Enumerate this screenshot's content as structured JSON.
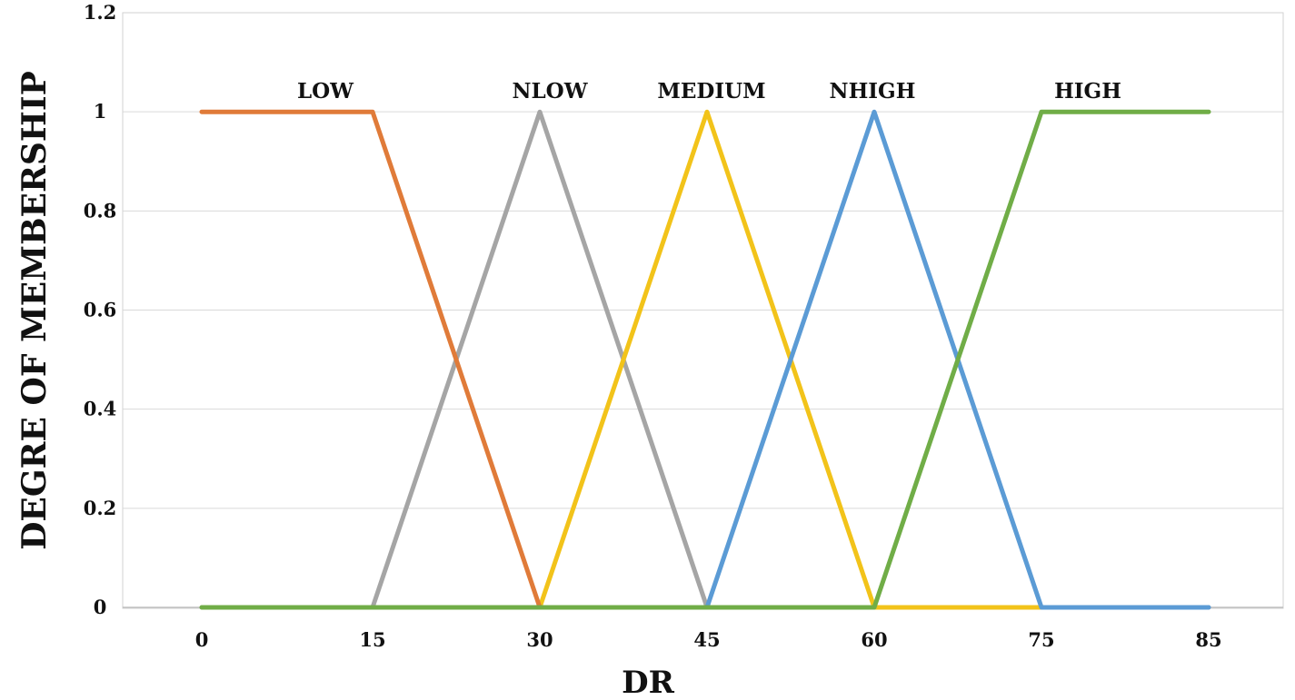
{
  "chart_data": {
    "type": "line",
    "title": "",
    "xlabel": "DR",
    "ylabel": "DEGRE OF MEMBERSHIP",
    "ylim": [
      0,
      1.2
    ],
    "y_ticks": [
      "0",
      "0.2",
      "0.4",
      "0.6",
      "0.8",
      "1",
      "1.2"
    ],
    "x_ticks": [
      "0",
      "15",
      "30",
      "45",
      "60",
      "75",
      "85"
    ],
    "grid": true,
    "series": [
      {
        "name": "LOW",
        "color": "#E07B39",
        "points": [
          [
            0,
            1
          ],
          [
            15,
            1
          ],
          [
            30,
            0
          ]
        ]
      },
      {
        "name": "NLOW",
        "color": "#A5A5A5",
        "points": [
          [
            0,
            0
          ],
          [
            15,
            0
          ],
          [
            30,
            1
          ],
          [
            45,
            0
          ],
          [
            85,
            0
          ]
        ]
      },
      {
        "name": "MEDIUM",
        "color": "#F2C31A",
        "points": [
          [
            30,
            0
          ],
          [
            45,
            1
          ],
          [
            60,
            0
          ],
          [
            75,
            0
          ]
        ]
      },
      {
        "name": "NHIGH",
        "color": "#5B9BD5",
        "points": [
          [
            45,
            0
          ],
          [
            60,
            1
          ],
          [
            75,
            0
          ],
          [
            85,
            0
          ]
        ]
      },
      {
        "name": "HIGH",
        "color": "#70AD47",
        "points": [
          [
            0,
            0
          ],
          [
            60,
            0
          ],
          [
            75,
            1
          ],
          [
            85,
            1
          ]
        ]
      }
    ]
  }
}
